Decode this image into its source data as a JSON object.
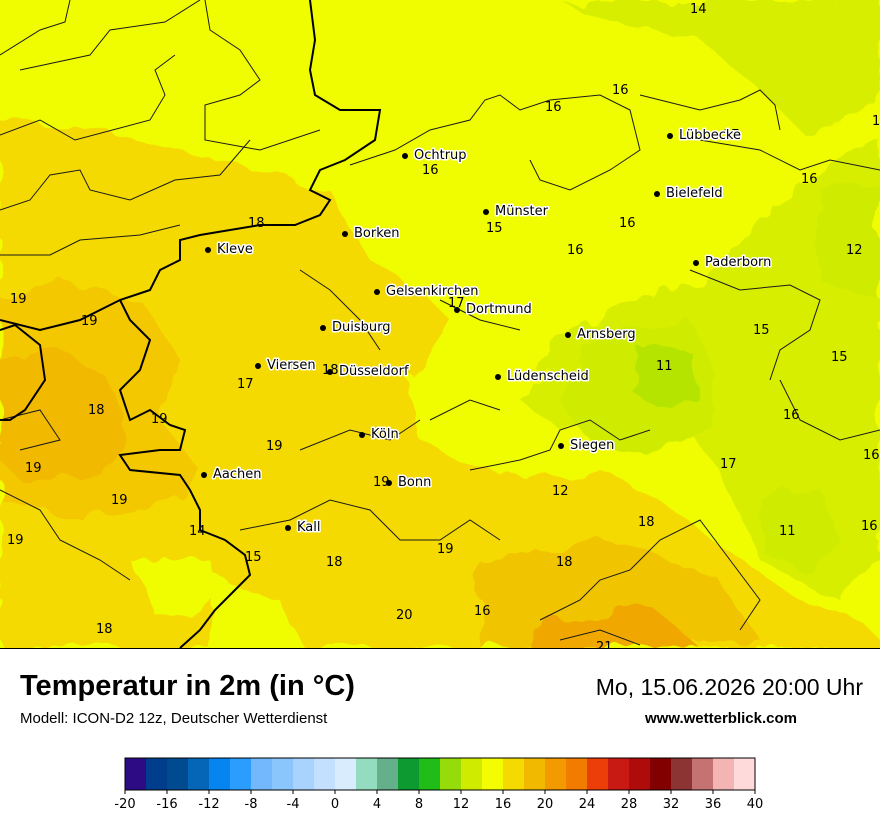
{
  "title": "Temperatur in 2m (in °C)",
  "model": "Modell: ICON-D2 12z, Deutscher Wetterdienst",
  "datetime": "Mo, 15.06.2026 20:00 Uhr",
  "website": "www.wetterblick.com",
  "cities": [
    {
      "name": "Ochtrup"
    },
    {
      "name": "Lübbecke"
    },
    {
      "name": "Bielefeld"
    },
    {
      "name": "Münster"
    },
    {
      "name": "Borken"
    },
    {
      "name": "Kleve"
    },
    {
      "name": "Paderborn"
    },
    {
      "name": "Gelsenkirchen"
    },
    {
      "name": "Dortmund"
    },
    {
      "name": "Duisburg"
    },
    {
      "name": "Arnsberg"
    },
    {
      "name": "Viersen"
    },
    {
      "name": "Düsseldorf"
    },
    {
      "name": "Lüdenscheid"
    },
    {
      "name": "Köln"
    },
    {
      "name": "Siegen"
    },
    {
      "name": "Aachen"
    },
    {
      "name": "Bonn"
    },
    {
      "name": "Kall"
    }
  ],
  "temperature_values": [
    "14",
    "16",
    "16",
    "17",
    "16",
    "16",
    "15",
    "16",
    "16",
    "12",
    "15",
    "18",
    "19",
    "19",
    "17",
    "15",
    "16",
    "17",
    "18",
    "11",
    "18",
    "19",
    "16",
    "19",
    "19",
    "17",
    "19",
    "12",
    "18",
    "11",
    "16",
    "19",
    "14",
    "15",
    "18",
    "19",
    "18",
    "19",
    "16",
    "18",
    "20",
    "21",
    "1"
  ],
  "legend": {
    "colors": [
      "#2c0b84",
      "#003d8c",
      "#004a8f",
      "#0566b8",
      "#0684f0",
      "#2b9dfc",
      "#73b7fc",
      "#8ac6fc",
      "#a8d3fc",
      "#c3e1fe",
      "#d9ecfe",
      "#94dcc0",
      "#63b08a",
      "#0d9a30",
      "#20bc18",
      "#96dc0a",
      "#cfec00",
      "#f3fc00",
      "#f4da00",
      "#f1b900",
      "#f29a00",
      "#f27c00",
      "#ec3e08",
      "#c81912",
      "#af0b0a",
      "#820000",
      "#8c3434",
      "#c57272",
      "#f3b4b4",
      "#ffdada"
    ],
    "ticks": [
      "-20",
      "-16",
      "-12",
      "-8",
      "-4",
      "0",
      "4",
      "8",
      "12",
      "16",
      "20",
      "24",
      "28",
      "32",
      "36",
      "40"
    ]
  }
}
